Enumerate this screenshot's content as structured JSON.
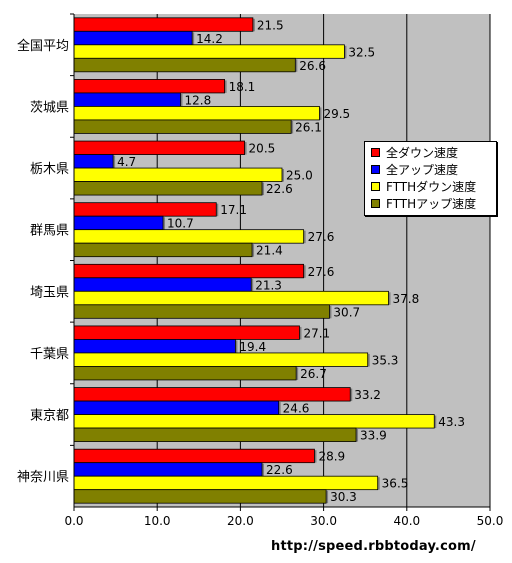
{
  "chart_data": {
    "type": "bar",
    "orientation": "horizontal",
    "categories": [
      "全国平均",
      "茨城県",
      "栃木県",
      "群馬県",
      "埼玉県",
      "千葉県",
      "東京都",
      "神奈川県"
    ],
    "series": [
      {
        "name": "全ダウン速度",
        "color": "#ff0000",
        "values": [
          21.5,
          18.1,
          20.5,
          17.1,
          27.6,
          27.1,
          33.2,
          28.9
        ]
      },
      {
        "name": "全アップ速度",
        "color": "#0000ff",
        "values": [
          14.2,
          12.8,
          4.7,
          10.7,
          21.3,
          19.4,
          24.6,
          22.6
        ]
      },
      {
        "name": "FTTHダウン速度",
        "color": "#ffff00",
        "values": [
          32.5,
          29.5,
          25.0,
          27.6,
          37.8,
          35.3,
          43.3,
          36.5
        ]
      },
      {
        "name": "FTTHアップ速度",
        "color": "#808000",
        "values": [
          26.6,
          26.1,
          22.6,
          21.4,
          30.7,
          26.7,
          33.9,
          30.3
        ]
      }
    ],
    "xlim": [
      0,
      50
    ],
    "x_ticks": [
      "0.0",
      "10.0",
      "20.0",
      "30.0",
      "40.0",
      "50.0"
    ],
    "grid": true,
    "plot_background": "#c0c0c0",
    "legend_position": "right",
    "data_labels": true,
    "source": "http://speed.rbbtoday.com/"
  }
}
